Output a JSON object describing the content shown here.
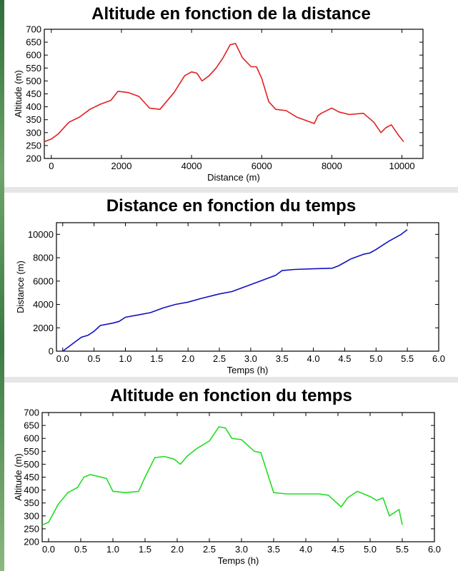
{
  "chart_data": [
    {
      "type": "line",
      "title": "Altitude en fonction de la distance",
      "xlabel": "Distance (m)",
      "ylabel": "Altitude (m)",
      "xlim": [
        -200,
        10600
      ],
      "ylim": [
        200,
        700
      ],
      "xticks": [
        0,
        2000,
        4000,
        6000,
        8000,
        10000
      ],
      "yticks": [
        200,
        250,
        300,
        350,
        400,
        450,
        500,
        550,
        600,
        650,
        700
      ],
      "color": "#e02020",
      "series": [
        {
          "x": [
            -200,
            0,
            200,
            500,
            800,
            1100,
            1400,
            1700,
            1900,
            2200,
            2500,
            2800,
            3100,
            3500,
            3800,
            4000,
            4150,
            4300,
            4500,
            4700,
            4900,
            5100,
            5250,
            5450,
            5700,
            5850,
            6000,
            6200,
            6400,
            6700,
            7000,
            7300,
            7500,
            7600,
            7700,
            8000,
            8200,
            8500,
            8900,
            9200,
            9400,
            9550,
            9700,
            9900,
            10050
          ],
          "y": [
            265,
            275,
            295,
            340,
            360,
            390,
            410,
            425,
            460,
            455,
            440,
            395,
            390,
            455,
            520,
            535,
            530,
            500,
            520,
            550,
            590,
            640,
            645,
            590,
            555,
            555,
            510,
            420,
            390,
            385,
            360,
            345,
            335,
            365,
            375,
            395,
            380,
            370,
            375,
            340,
            300,
            320,
            330,
            290,
            265
          ]
        }
      ]
    },
    {
      "type": "line",
      "title": "Distance en fonction du temps",
      "xlabel": "Temps (h)",
      "ylabel": "Distance (m)",
      "xlim": [
        -0.1,
        6.0
      ],
      "ylim": [
        0,
        11000
      ],
      "xticks": [
        0.0,
        0.5,
        1.0,
        1.5,
        2.0,
        2.5,
        3.0,
        3.5,
        4.0,
        4.5,
        5.0,
        5.5,
        6.0
      ],
      "yticks": [
        0,
        2000,
        4000,
        6000,
        8000,
        10000
      ],
      "color": "#1010c0",
      "series": [
        {
          "x": [
            0.0,
            0.1,
            0.2,
            0.3,
            0.4,
            0.5,
            0.6,
            0.8,
            0.9,
            1.0,
            1.2,
            1.4,
            1.6,
            1.8,
            2.0,
            2.2,
            2.5,
            2.7,
            2.9,
            3.0,
            3.2,
            3.4,
            3.5,
            3.7,
            4.0,
            4.3,
            4.4,
            4.6,
            4.8,
            4.9,
            5.0,
            5.2,
            5.4,
            5.5
          ],
          "y": [
            0,
            400,
            800,
            1200,
            1350,
            1700,
            2200,
            2400,
            2550,
            2900,
            3100,
            3300,
            3700,
            4000,
            4200,
            4500,
            4900,
            5100,
            5500,
            5700,
            6100,
            6500,
            6900,
            7000,
            7050,
            7100,
            7300,
            7900,
            8300,
            8400,
            8700,
            9400,
            10000,
            10400
          ]
        }
      ]
    },
    {
      "type": "line",
      "title": "Altitude en fonction du temps",
      "xlabel": "Temps (h)",
      "ylabel": "Altitude (m)",
      "xlim": [
        -0.1,
        6.0
      ],
      "ylim": [
        200,
        700
      ],
      "xticks": [
        0.0,
        0.5,
        1.0,
        1.5,
        2.0,
        2.5,
        3.0,
        3.5,
        4.0,
        4.5,
        5.0,
        5.5,
        6.0
      ],
      "yticks": [
        200,
        250,
        300,
        350,
        400,
        450,
        500,
        550,
        600,
        650,
        700
      ],
      "color": "#22dd22",
      "series": [
        {
          "x": [
            -0.1,
            0.0,
            0.15,
            0.3,
            0.45,
            0.55,
            0.65,
            0.9,
            1.0,
            1.2,
            1.4,
            1.5,
            1.65,
            1.8,
            1.95,
            2.05,
            2.15,
            2.3,
            2.5,
            2.65,
            2.75,
            2.85,
            3.0,
            3.2,
            3.3,
            3.5,
            3.7,
            4.0,
            4.2,
            4.35,
            4.55,
            4.65,
            4.8,
            5.0,
            5.1,
            5.2,
            5.3,
            5.45,
            5.5
          ],
          "y": [
            265,
            275,
            345,
            390,
            410,
            450,
            460,
            445,
            395,
            390,
            395,
            450,
            525,
            530,
            520,
            500,
            530,
            560,
            590,
            645,
            640,
            600,
            595,
            550,
            545,
            390,
            385,
            385,
            385,
            380,
            335,
            370,
            395,
            375,
            360,
            370,
            300,
            325,
            265
          ]
        }
      ]
    }
  ]
}
